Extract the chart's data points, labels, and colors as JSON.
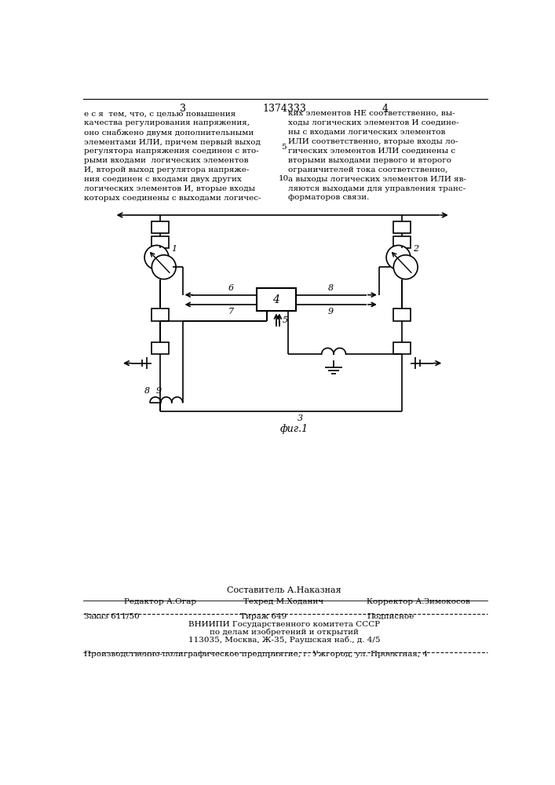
{
  "page_number_left": "3",
  "patent_number": "1374333",
  "page_number_right": "4",
  "text_left": "е с я  тем, что, с целью повышения\nкачества регулирования напряжения,\nоно снабжено двумя дополнительными\nэлементами ИЛИ, причем первый выход\nрегулятора напряжения соединен с вто-\nрыми входами  логических элементов\nИ, второй выход регулятора напряже-\nния соединен с входами двух других\nлогических элементов И, вторые входы\nкоторых соединены с выходами логичес-",
  "text_right": "ких элементов НЕ соответственно, вы-\nходы логических элементов И соедине-\nны с входами логических элементов\nИЛИ соответственно, вторые входы ло-\nгических элементов ИЛИ соединены с\nвторыми выходами первого и второго\nограничителей тока соответственно,\nа выходы логических элементов ИЛИ яв-\nляются выходами для управления транс-\nформаторов связи.",
  "line_number_5": "5",
  "line_number_10": "10",
  "fig_label": "фиг.1",
  "footer_composer": "Составитель А.Наказная",
  "footer_editor": "Редактор А.Огар",
  "footer_tech": "Техред М.Ходанич",
  "footer_corrector": "Корректор А.Зимокосов",
  "footer_order": "Заказ 611/50",
  "footer_circulation": "Тираж 649",
  "footer_subscription": "Подписное",
  "footer_vniip1": "ВНИИПИ Государственного комитета СССР",
  "footer_vniip2": "по делам изобретений и открытий",
  "footer_vniip3": "113035, Москва, Ж-35, Раушская наб., д. 4/5",
  "footer_enterprise": "Производственно-полиграфическое предприятие, г. Ужгород, ул. Проектная, 4",
  "bg_color": "#ffffff",
  "text_color": "#000000",
  "line_color": "#000000"
}
